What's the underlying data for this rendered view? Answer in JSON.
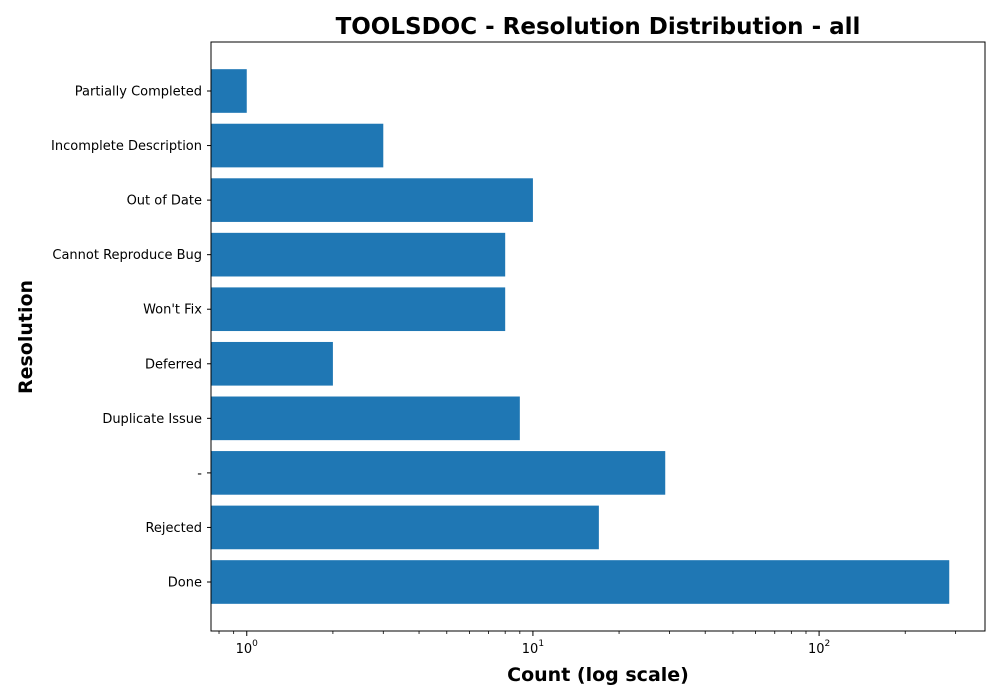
{
  "chart_data": {
    "type": "bar",
    "orientation": "horizontal",
    "title": "TOOLSDOC - Resolution Distribution - all",
    "xlabel": "Count (log scale)",
    "ylabel": "Resolution",
    "xscale": "log",
    "xlim": [
      0.75,
      380
    ],
    "x_ticks": [
      {
        "value": 1,
        "base": "10",
        "exp": "0"
      },
      {
        "value": 10,
        "base": "10",
        "exp": "1"
      },
      {
        "value": 100,
        "base": "10",
        "exp": "2"
      }
    ],
    "categories": [
      "Done",
      "Rejected",
      "-",
      "Duplicate Issue",
      "Deferred",
      "Won't Fix",
      "Cannot Reproduce Bug",
      "Out of Date",
      "Incomplete Description",
      "Partially Completed"
    ],
    "values": [
      285,
      17,
      29,
      9,
      2,
      8,
      8,
      10,
      3,
      1
    ],
    "bar_color": "#1f77b4",
    "grid": false,
    "legend": "none"
  }
}
